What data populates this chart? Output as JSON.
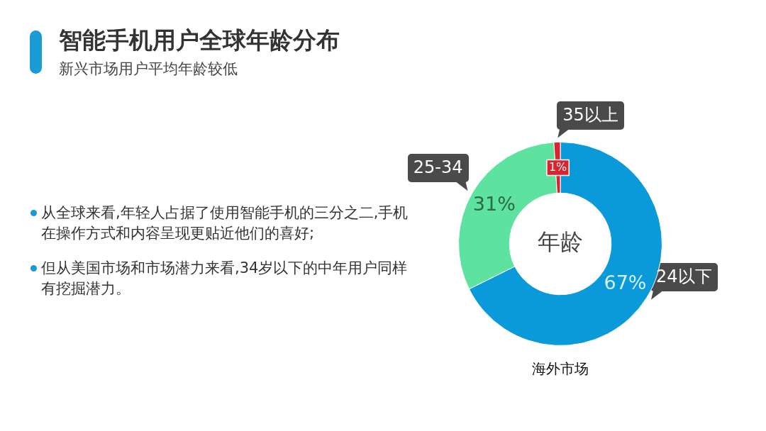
{
  "chart_data": {
    "type": "donut",
    "title": "智能手机用户全球年龄分布",
    "subtitle": "新兴市场用户平均年龄较低",
    "categories": [
      "24以下",
      "25-34",
      "35以上"
    ],
    "values": [
      67,
      31,
      1
    ],
    "colors": [
      "#0b9ad9",
      "#5ee2a0",
      "#d9232e"
    ],
    "value_labels": [
      "67%",
      "31%",
      "1%"
    ],
    "annotations": [
      "年龄",
      "海外市场",
      "从全球来看,年轻人占据了使用智能手机的三分之二,手机在操作方式和内容呈现更贴近他们的喜好;",
      "但从美国市场和市场潜力来看,34岁以下的中年用户同样有挖掘潜力。"
    ]
  }
}
